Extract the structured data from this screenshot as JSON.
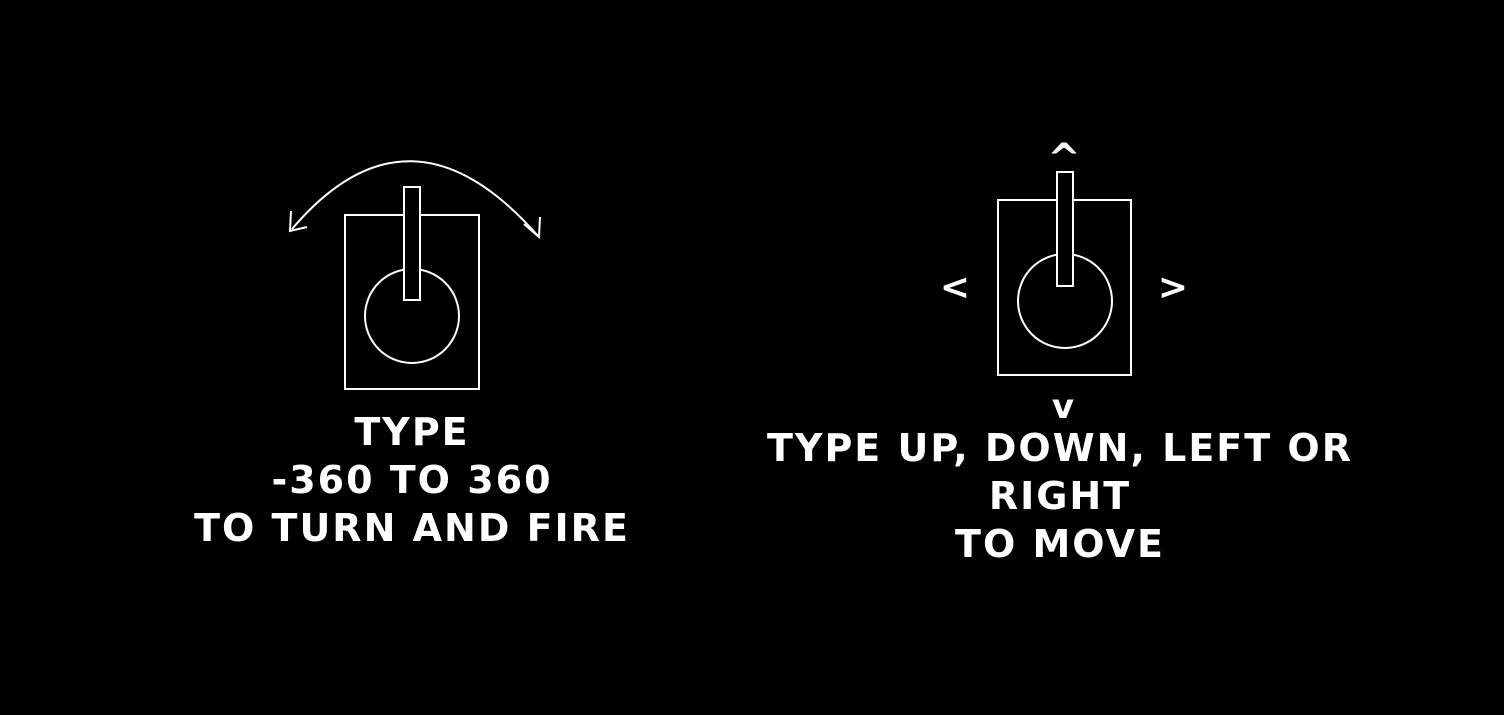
{
  "colors": {
    "background": "#000000",
    "foreground": "#ffffff"
  },
  "turn_panel": {
    "icon": "joystick-rotate-icon",
    "caption_lines": [
      "TYPE",
      "-360 TO 360",
      "TO TURN AND FIRE"
    ]
  },
  "move_panel": {
    "icon": "joystick-directional-icon",
    "arrow_up": "^",
    "arrow_down": "v",
    "arrow_left": "<",
    "arrow_right": ">",
    "caption_lines": [
      "TYPE UP, DOWN, LEFT OR",
      "RIGHT",
      "TO MOVE"
    ]
  }
}
